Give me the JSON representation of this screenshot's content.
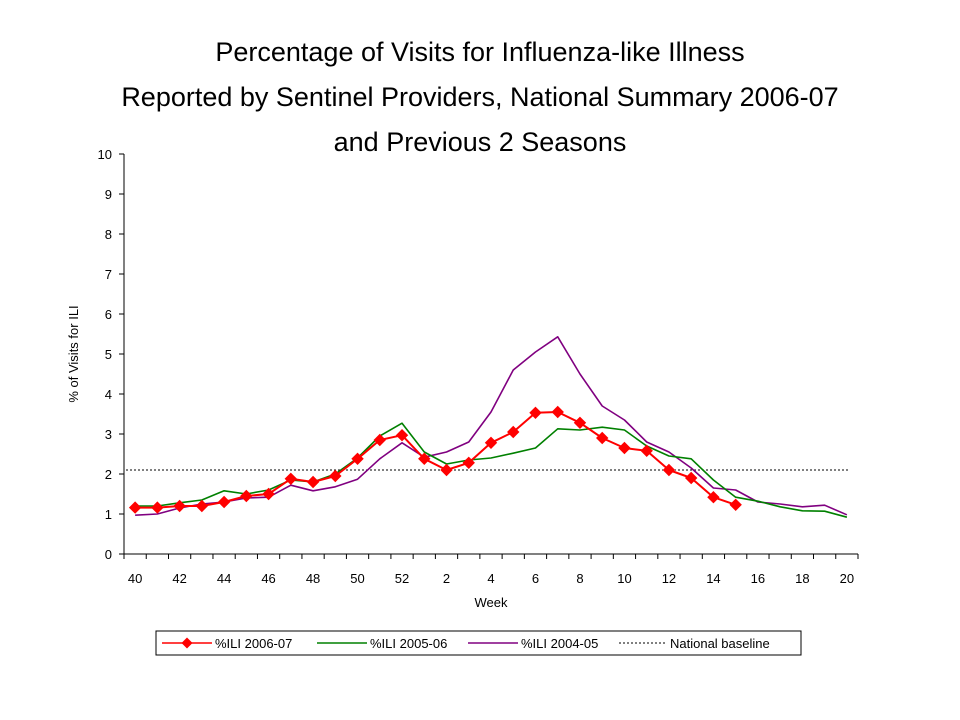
{
  "chart_data": {
    "type": "line",
    "title": [
      "Percentage of Visits for Influenza-like Illness",
      "Reported by Sentinel Providers, National Summary 2006-07",
      "and Previous 2 Seasons"
    ],
    "xlabel": "Week",
    "ylabel": "% of Visits for ILI",
    "ylim": [
      0,
      10
    ],
    "yticks": [
      "0",
      "1",
      "2",
      "3",
      "4",
      "5",
      "6",
      "7",
      "8",
      "9",
      "10"
    ],
    "categories": [
      "40",
      "41",
      "42",
      "43",
      "44",
      "45",
      "46",
      "47",
      "48",
      "49",
      "50",
      "51",
      "52",
      "1",
      "2",
      "3",
      "4",
      "5",
      "6",
      "7",
      "8",
      "9",
      "10",
      "11",
      "12",
      "13",
      "14",
      "15",
      "16",
      "17",
      "18",
      "19",
      "20"
    ],
    "xtick_labels": [
      "40",
      "42",
      "44",
      "46",
      "48",
      "50",
      "52",
      "2",
      "4",
      "6",
      "8",
      "10",
      "12",
      "14",
      "16",
      "18",
      "20"
    ],
    "grid": false,
    "legend_position": "bottom",
    "series": [
      {
        "name": "%ILI 2006-07",
        "color": "#ff0000",
        "marker": "diamond",
        "values": [
          1.16,
          1.16,
          1.2,
          1.2,
          1.3,
          1.45,
          1.5,
          1.88,
          1.8,
          1.95,
          2.38,
          2.85,
          2.97,
          2.38,
          2.1,
          2.28,
          2.78,
          3.05,
          3.53,
          3.55,
          3.28,
          2.9,
          2.65,
          2.58,
          2.1,
          1.9,
          1.42,
          1.23,
          null,
          null,
          null,
          null,
          null
        ]
      },
      {
        "name": "%ILI 2005-06",
        "color": "#008000",
        "values": [
          1.2,
          1.2,
          1.28,
          1.35,
          1.58,
          1.5,
          1.6,
          1.85,
          1.8,
          2.0,
          2.4,
          2.95,
          3.27,
          2.55,
          2.25,
          2.35,
          2.4,
          2.52,
          2.65,
          3.13,
          3.1,
          3.17,
          3.1,
          2.7,
          2.45,
          2.38,
          1.85,
          1.42,
          1.32,
          1.18,
          1.08,
          1.07,
          0.92
        ]
      },
      {
        "name": "%ILI 2004-05",
        "color": "#800080",
        "values": [
          0.97,
          1.0,
          1.15,
          1.25,
          1.3,
          1.4,
          1.42,
          1.72,
          1.58,
          1.68,
          1.87,
          2.38,
          2.78,
          2.42,
          2.55,
          2.8,
          3.55,
          4.6,
          5.05,
          5.43,
          4.5,
          3.7,
          3.35,
          2.8,
          2.55,
          2.15,
          1.65,
          1.6,
          1.3,
          1.25,
          1.18,
          1.22,
          0.98
        ]
      },
      {
        "name": "National baseline",
        "color": "#000000",
        "dashed": true,
        "constant": 2.1
      }
    ]
  }
}
